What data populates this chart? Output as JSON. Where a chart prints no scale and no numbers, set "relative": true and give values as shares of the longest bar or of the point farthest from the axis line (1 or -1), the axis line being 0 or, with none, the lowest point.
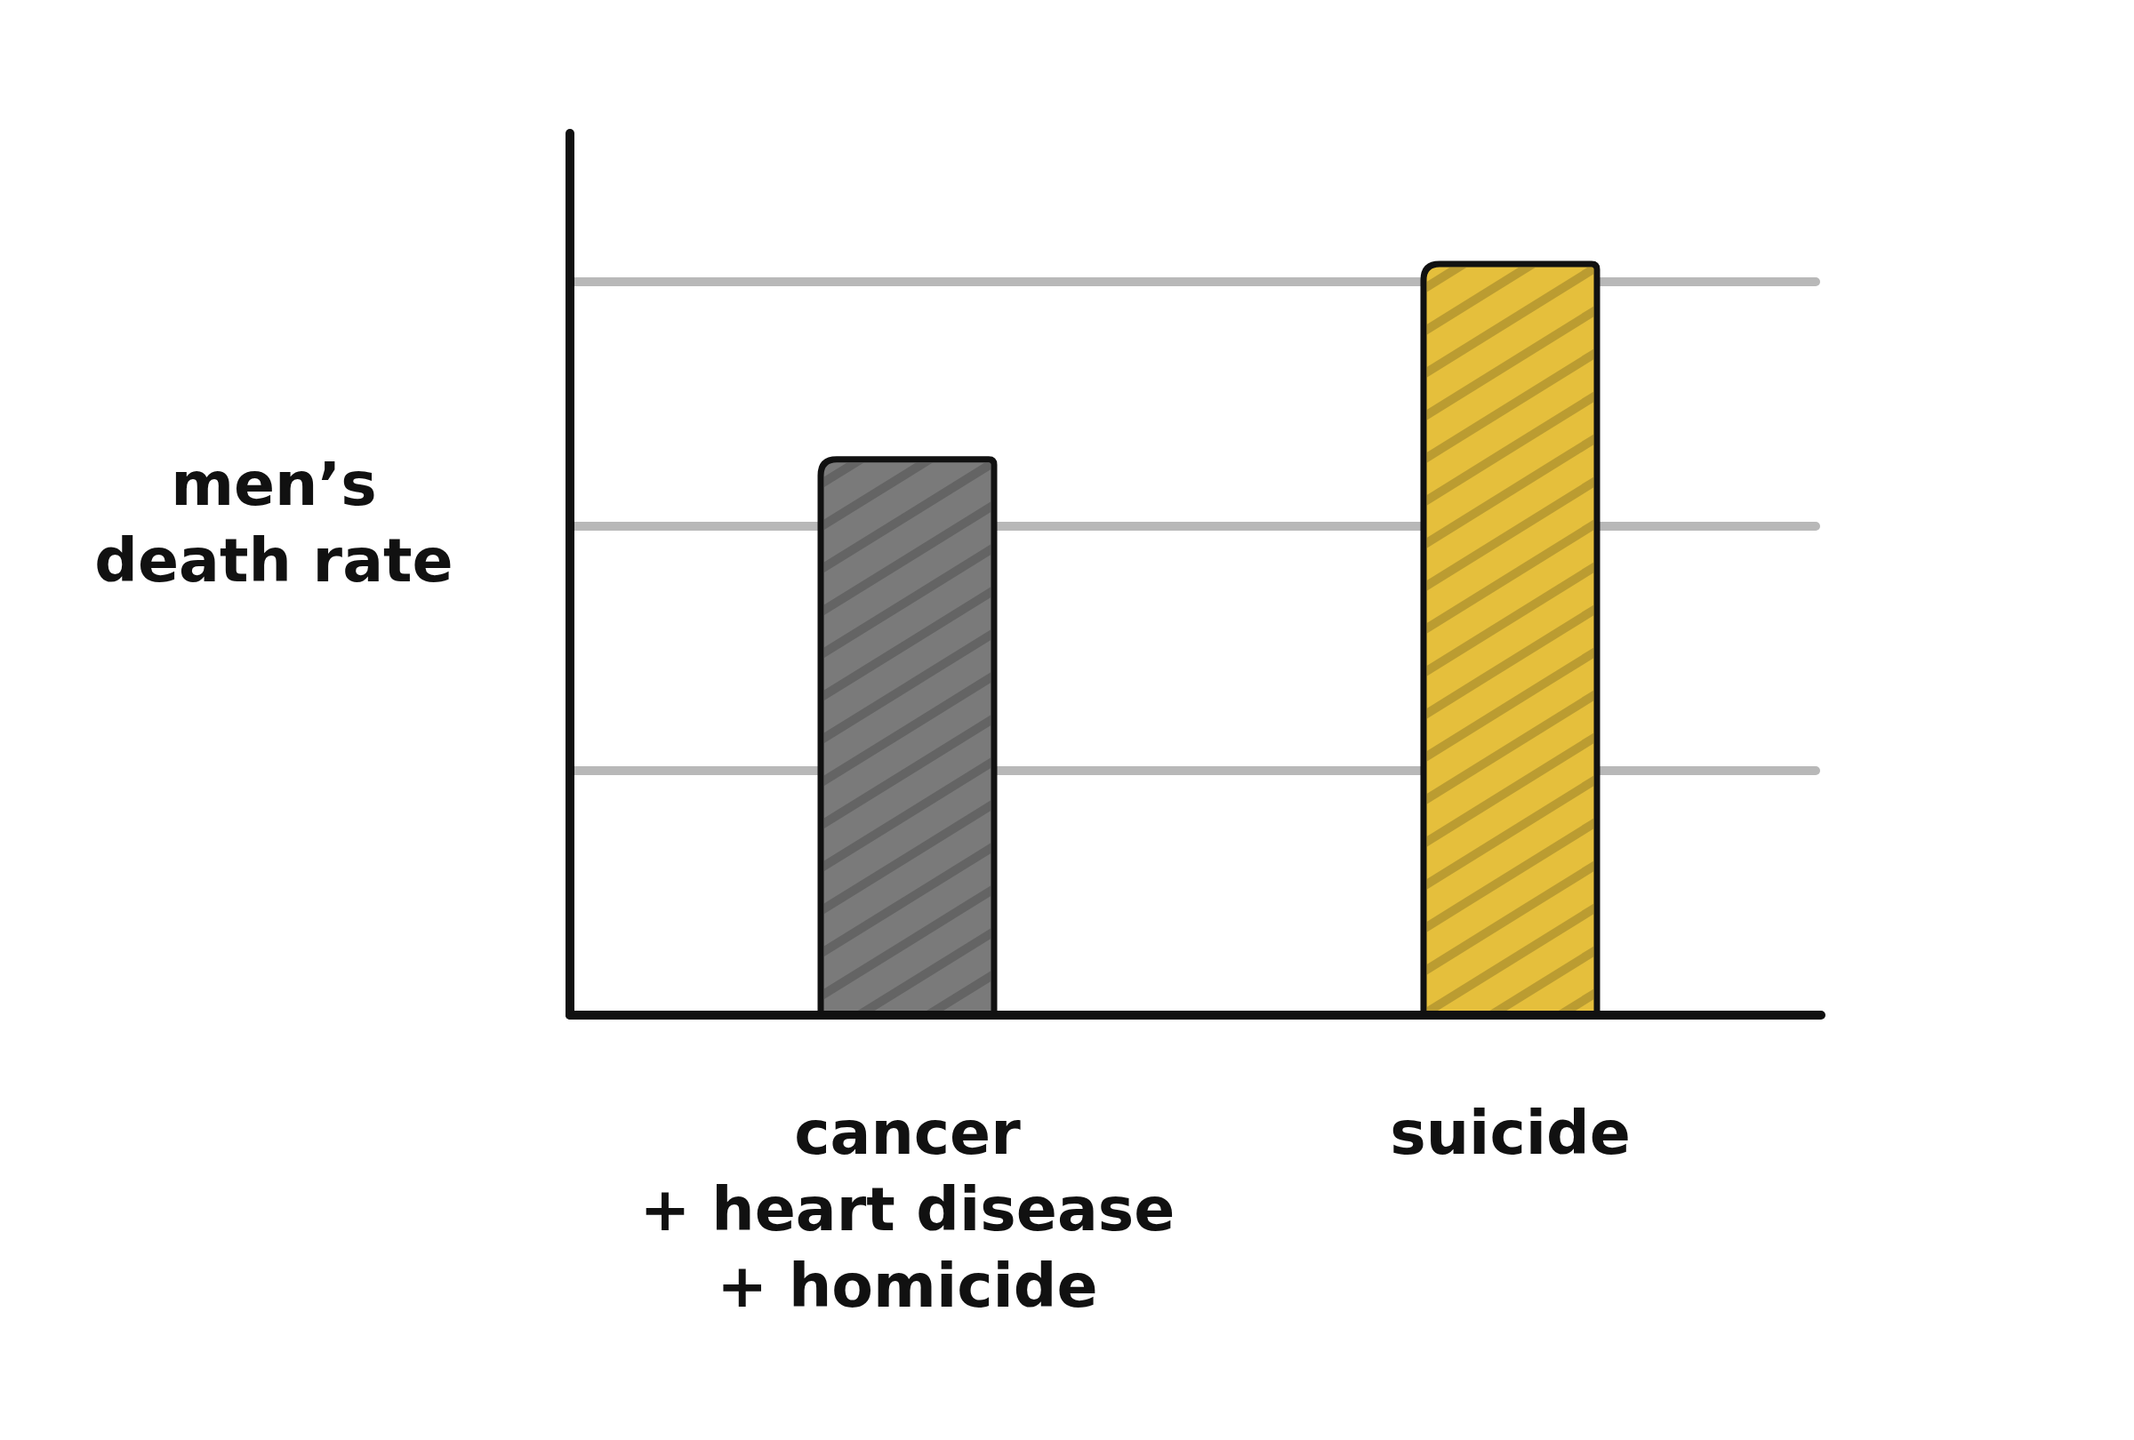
{
  "chart_data": {
    "type": "bar",
    "relative": true,
    "ylabel": "men’s\ndeath rate",
    "categories": [
      "cancer\n+ heart disease\n+ homicide",
      "suicide"
    ],
    "values": [
      0.74,
      1
    ],
    "colors": [
      "#7a7a7a",
      "#e5bf3c"
    ],
    "grid": true
  }
}
